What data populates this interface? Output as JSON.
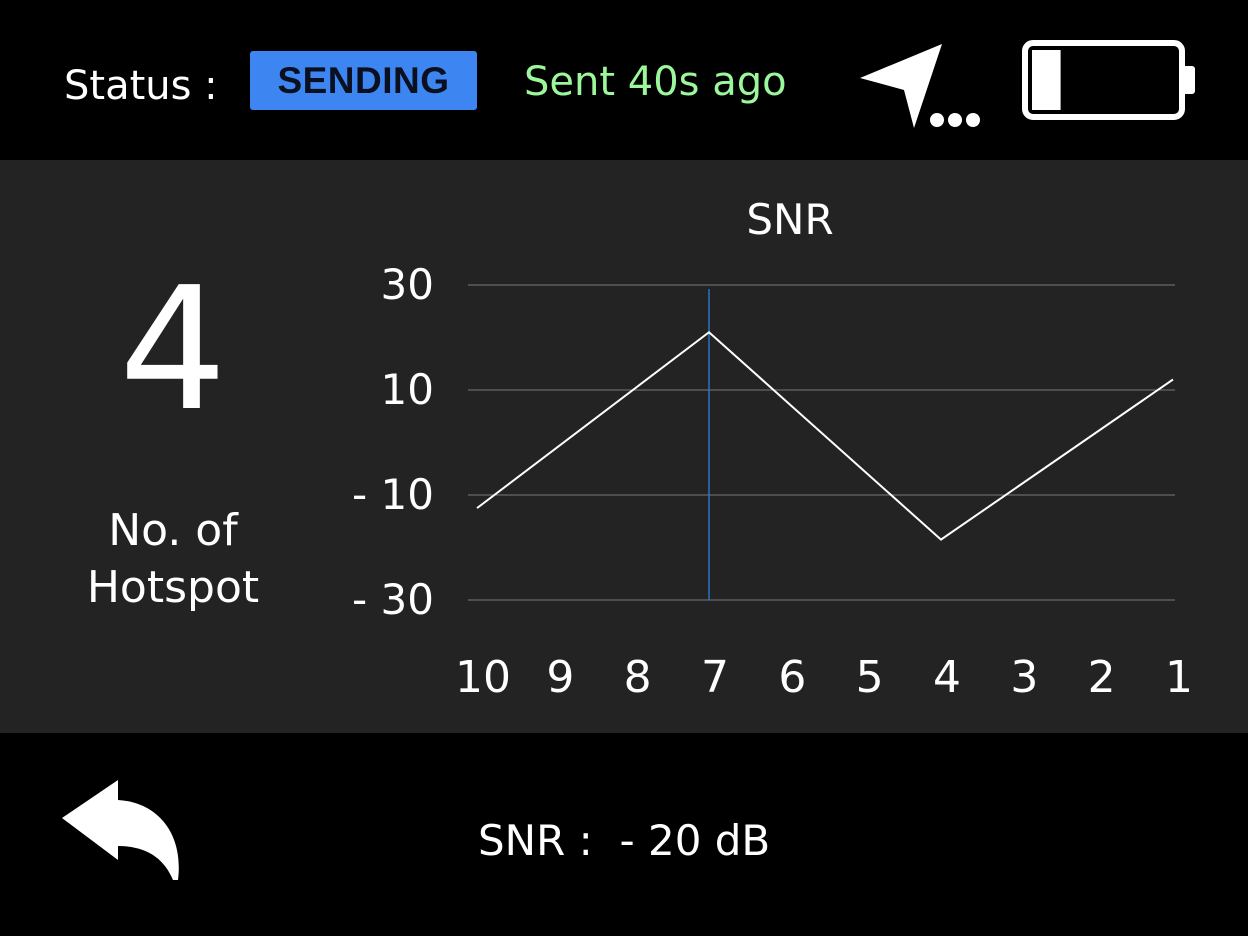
{
  "header": {
    "status_label": "Status :",
    "status_value": "SENDING",
    "last_sent": "Sent 40s ago",
    "gps_icon": "navigation-arrow-searching-icon",
    "battery_icon": "battery-low-icon",
    "battery_level": 0.2
  },
  "hotspot": {
    "count": "4",
    "label_line1": "No. of",
    "label_line2": "Hotspot"
  },
  "chart_data": {
    "type": "line",
    "title": "SNR",
    "x": [
      "10",
      "9",
      "8",
      "7",
      "6",
      "5",
      "4",
      "3",
      "2",
      "1"
    ],
    "series": [
      {
        "x": [
          10,
          7,
          4,
          1
        ],
        "values": [
          -12.5,
          21,
          -18.5,
          12
        ]
      }
    ],
    "y_ticks": [
      "30",
      "10",
      "- 10",
      "- 30"
    ],
    "ylim": [
      -30,
      30
    ],
    "grid": true,
    "cursor_x": 7,
    "colors": {
      "line": "#ffffff",
      "grid": "#7a7a7a",
      "cursor": "#2b73c6"
    }
  },
  "footer": {
    "back_icon": "back-arrow-icon",
    "snr_readout": "SNR :  - 20 dB"
  },
  "colors": {
    "background": "#000000",
    "panel": "#232323",
    "badge": "#3d86f2",
    "sent_text": "#9cf79c"
  }
}
